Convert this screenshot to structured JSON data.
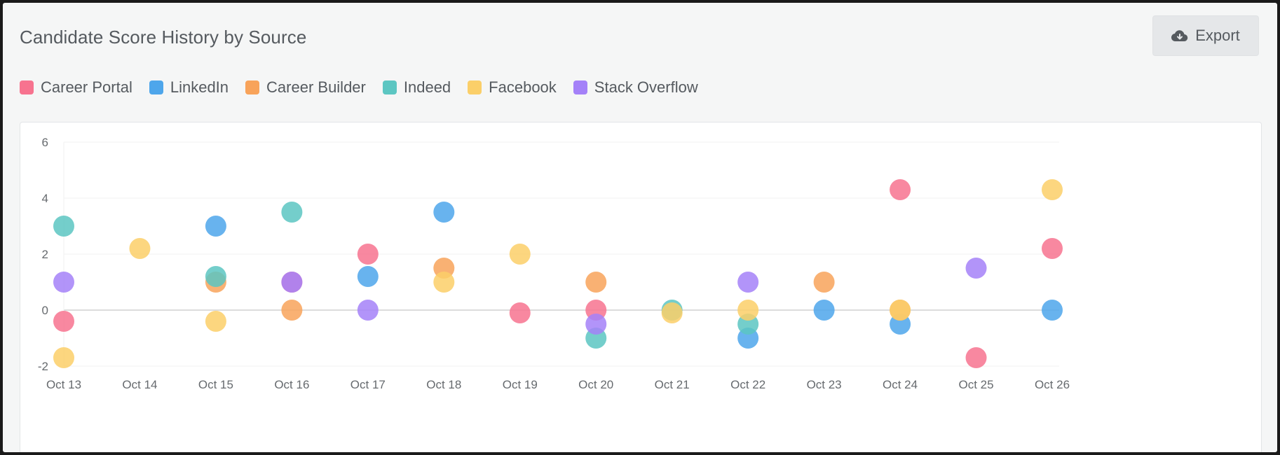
{
  "header": {
    "title": "Candidate Score History by Source",
    "export_label": "Export"
  },
  "legend": [
    {
      "name": "Career Portal",
      "color": "#f7738f"
    },
    {
      "name": "LinkedIn",
      "color": "#4ea6eb"
    },
    {
      "name": "Career Builder",
      "color": "#f8a35a"
    },
    {
      "name": "Indeed",
      "color": "#5cc6c2"
    },
    {
      "name": "Facebook",
      "color": "#fbcf69"
    },
    {
      "name": "Stack Overflow",
      "color": "#a481f8"
    }
  ],
  "chart_data": {
    "type": "scatter",
    "title": "",
    "xlabel": "",
    "ylabel": "",
    "categories": [
      "Oct 13",
      "Oct 14",
      "Oct 15",
      "Oct 16",
      "Oct 17",
      "Oct 18",
      "Oct 19",
      "Oct 20",
      "Oct 21",
      "Oct 22",
      "Oct 23",
      "Oct 24",
      "Oct 25",
      "Oct 26"
    ],
    "ylim": [
      -2,
      6
    ],
    "yticks": [
      "-2",
      "0",
      "2",
      "4",
      "6"
    ],
    "grid": true,
    "legend_position": "top-left",
    "series": [
      {
        "name": "Career Portal",
        "color": "#f7738f",
        "points": [
          [
            "Oct 13",
            -0.4
          ],
          [
            "Oct 16",
            1.0
          ],
          [
            "Oct 17",
            2.0
          ],
          [
            "Oct 19",
            -0.1
          ],
          [
            "Oct 20",
            0.0
          ],
          [
            "Oct 24",
            4.3
          ],
          [
            "Oct 25",
            -1.7
          ],
          [
            "Oct 26",
            2.2
          ]
        ]
      },
      {
        "name": "LinkedIn",
        "color": "#4ea6eb",
        "points": [
          [
            "Oct 15",
            3.0
          ],
          [
            "Oct 17",
            1.2
          ],
          [
            "Oct 18",
            3.5
          ],
          [
            "Oct 22",
            -1.0
          ],
          [
            "Oct 23",
            0.0
          ],
          [
            "Oct 24",
            -0.5
          ],
          [
            "Oct 26",
            0.0
          ]
        ]
      },
      {
        "name": "Career Builder",
        "color": "#f8a35a",
        "points": [
          [
            "Oct 15",
            1.0
          ],
          [
            "Oct 16",
            0.0
          ],
          [
            "Oct 18",
            1.5
          ],
          [
            "Oct 20",
            1.0
          ],
          [
            "Oct 23",
            1.0
          ],
          [
            "Oct 24",
            0.0
          ]
        ]
      },
      {
        "name": "Indeed",
        "color": "#5cc6c2",
        "points": [
          [
            "Oct 13",
            3.0
          ],
          [
            "Oct 15",
            1.2
          ],
          [
            "Oct 16",
            3.5
          ],
          [
            "Oct 20",
            -1.0
          ],
          [
            "Oct 21",
            0.0
          ],
          [
            "Oct 22",
            -0.5
          ]
        ]
      },
      {
        "name": "Facebook",
        "color": "#fbcf69",
        "points": [
          [
            "Oct 13",
            -1.7
          ],
          [
            "Oct 14",
            2.2
          ],
          [
            "Oct 15",
            -0.4
          ],
          [
            "Oct 18",
            1.0
          ],
          [
            "Oct 19",
            2.0
          ],
          [
            "Oct 21",
            -0.1
          ],
          [
            "Oct 22",
            0.0
          ],
          [
            "Oct 24",
            0.0
          ],
          [
            "Oct 26",
            4.3
          ]
        ]
      },
      {
        "name": "Stack Overflow",
        "color": "#a481f8",
        "points": [
          [
            "Oct 13",
            1.0
          ],
          [
            "Oct 16",
            1.0
          ],
          [
            "Oct 17",
            0.0
          ],
          [
            "Oct 20",
            -0.5
          ],
          [
            "Oct 22",
            1.0
          ],
          [
            "Oct 25",
            1.5
          ]
        ]
      }
    ]
  }
}
